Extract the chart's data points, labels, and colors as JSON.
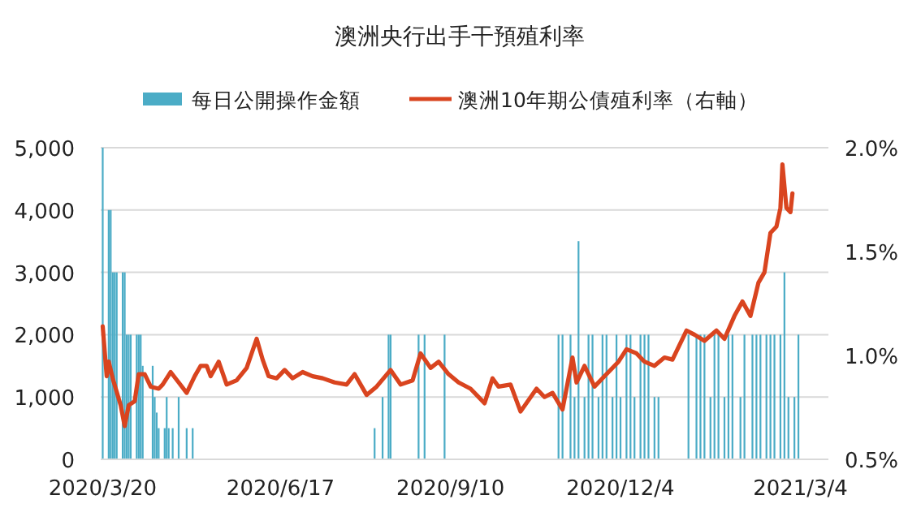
{
  "chart_data": {
    "type": "bar",
    "title": "澳洲央行出手干預殖利率",
    "xlim": [
      "2020-03-19",
      "2021-03-18"
    ],
    "xticks": [
      {
        "value": "2020-03-20",
        "label": "2020/3/20"
      },
      {
        "value": "2020-06-17",
        "label": "2020/6/17"
      },
      {
        "value": "2020-09-10",
        "label": "2020/9/10"
      },
      {
        "value": "2020-12-04",
        "label": "2020/12/4"
      },
      {
        "value": "2021-03-04",
        "label": "2021/3/4"
      }
    ],
    "ylim": [
      0,
      5000
    ],
    "yticks": [
      0,
      {
        "value": 1000,
        "label": "1,000"
      },
      {
        "value": 2000,
        "label": "2,000"
      },
      {
        "value": 3000,
        "label": "3,000"
      },
      {
        "value": 4000,
        "label": "4,000"
      },
      {
        "value": 5000,
        "label": "5,000"
      }
    ],
    "y2lim": [
      0.5,
      2.0
    ],
    "y2ticks": [
      {
        "value": 0.5,
        "label": "0.5%"
      },
      {
        "value": 1.0,
        "label": "1.0%"
      },
      {
        "value": 1.5,
        "label": "1.5%"
      },
      {
        "value": 2.0,
        "label": "2.0%"
      }
    ],
    "grid": "y",
    "legend": "top",
    "series": [
      {
        "name": "每日公開操作金額",
        "color": "#4bacc6",
        "x": [
          "2020-03-20",
          "2020-03-23",
          "2020-03-24",
          "2020-03-25",
          "2020-03-26",
          "2020-03-27",
          "2020-03-30",
          "2020-03-31",
          "2020-04-01",
          "2020-04-02",
          "2020-04-03",
          "2020-04-06",
          "2020-04-07",
          "2020-04-08",
          "2020-04-09",
          "2020-04-14",
          "2020-04-15",
          "2020-04-16",
          "2020-04-17",
          "2020-04-20",
          "2020-04-21",
          "2020-04-22",
          "2020-04-24",
          "2020-04-27",
          "2020-05-01",
          "2020-05-04",
          "2020-08-03",
          "2020-08-07",
          "2020-08-10",
          "2020-08-11",
          "2020-08-25",
          "2020-08-28",
          "2020-09-07",
          "2020-11-03",
          "2020-11-05",
          "2020-11-09",
          "2020-11-11",
          "2020-11-13",
          "2020-11-16",
          "2020-11-18",
          "2020-11-20",
          "2020-11-23",
          "2020-11-25",
          "2020-11-27",
          "2020-11-30",
          "2020-12-02",
          "2020-12-04",
          "2020-12-07",
          "2020-12-09",
          "2020-12-11",
          "2020-12-14",
          "2020-12-16",
          "2020-12-18",
          "2020-12-21",
          "2020-12-23",
          "2021-01-07",
          "2021-01-11",
          "2021-01-13",
          "2021-01-15",
          "2021-01-18",
          "2021-01-20",
          "2021-01-22",
          "2021-01-25",
          "2021-01-27",
          "2021-01-29",
          "2021-02-02",
          "2021-02-04",
          "2021-02-08",
          "2021-02-10",
          "2021-02-12",
          "2021-02-15",
          "2021-02-17",
          "2021-02-19",
          "2021-02-22",
          "2021-02-24",
          "2021-02-26",
          "2021-03-01",
          "2021-03-03"
        ],
        "values": [
          5000,
          4000,
          4000,
          3000,
          3000,
          3000,
          3000,
          3000,
          2000,
          2000,
          2000,
          2000,
          2000,
          2000,
          1500,
          1500,
          1000,
          750,
          500,
          500,
          1000,
          500,
          500,
          1000,
          500,
          500,
          500,
          1000,
          2000,
          2000,
          2000,
          2000,
          2000,
          2000,
          2000,
          2000,
          1000,
          3500,
          1000,
          2000,
          2000,
          1000,
          2000,
          2000,
          1000,
          2000,
          1000,
          2000,
          2000,
          1000,
          2000,
          2000,
          2000,
          1000,
          1000,
          2000,
          2000,
          2000,
          2000,
          1000,
          2000,
          2000,
          1000,
          2000,
          2000,
          1000,
          2000,
          2000,
          2000,
          2000,
          2000,
          2000,
          2000,
          2000,
          3000,
          1000,
          1000,
          2000
        ]
      },
      {
        "name": "澳洲10年期公債殖利率（右軸）",
        "type": "line",
        "axis": "y2",
        "color": "#d9441f",
        "x": [
          "2020-03-20",
          "2020-03-22",
          "2020-03-23",
          "2020-03-25",
          "2020-03-29",
          "2020-03-31",
          "2020-04-02",
          "2020-04-05",
          "2020-04-07",
          "2020-04-10",
          "2020-04-13",
          "2020-04-17",
          "2020-04-19",
          "2020-04-23",
          "2020-04-27",
          "2020-05-01",
          "2020-05-05",
          "2020-05-08",
          "2020-05-11",
          "2020-05-13",
          "2020-05-17",
          "2020-05-21",
          "2020-05-26",
          "2020-05-31",
          "2020-06-05",
          "2020-06-08",
          "2020-06-11",
          "2020-06-15",
          "2020-06-19",
          "2020-06-23",
          "2020-06-28",
          "2020-07-03",
          "2020-07-08",
          "2020-07-14",
          "2020-07-20",
          "2020-07-24",
          "2020-07-30",
          "2020-08-04",
          "2020-08-11",
          "2020-08-16",
          "2020-08-22",
          "2020-08-26",
          "2020-08-31",
          "2020-09-04",
          "2020-09-09",
          "2020-09-14",
          "2020-09-20",
          "2020-09-27",
          "2020-10-01",
          "2020-10-04",
          "2020-10-10",
          "2020-10-15",
          "2020-10-23",
          "2020-10-27",
          "2020-10-31",
          "2020-11-05",
          "2020-11-10",
          "2020-11-12",
          "2020-11-16",
          "2020-11-21",
          "2020-11-27",
          "2020-12-03",
          "2020-12-07",
          "2020-12-12",
          "2020-12-16",
          "2020-12-21",
          "2020-12-26",
          "2020-12-30",
          "2021-01-06",
          "2021-01-10",
          "2021-01-15",
          "2021-01-21",
          "2021-01-25",
          "2021-01-30",
          "2021-02-03",
          "2021-02-07",
          "2021-02-11",
          "2021-02-14",
          "2021-02-17",
          "2021-02-20",
          "2021-02-22",
          "2021-02-23",
          "2021-02-25",
          "2021-02-27",
          "2021-02-28"
        ],
        "values": [
          1.14,
          0.9,
          0.97,
          0.89,
          0.76,
          0.66,
          0.76,
          0.78,
          0.91,
          0.91,
          0.85,
          0.84,
          0.86,
          0.92,
          0.87,
          0.82,
          0.9,
          0.95,
          0.95,
          0.9,
          0.97,
          0.86,
          0.88,
          0.94,
          1.08,
          0.98,
          0.9,
          0.89,
          0.93,
          0.89,
          0.92,
          0.9,
          0.89,
          0.87,
          0.86,
          0.91,
          0.81,
          0.85,
          0.93,
          0.86,
          0.88,
          1.01,
          0.94,
          0.97,
          0.91,
          0.87,
          0.84,
          0.77,
          0.89,
          0.85,
          0.86,
          0.73,
          0.84,
          0.8,
          0.82,
          0.74,
          0.99,
          0.87,
          0.95,
          0.85,
          0.91,
          0.97,
          1.03,
          1.01,
          0.97,
          0.95,
          0.99,
          0.98,
          1.12,
          1.1,
          1.07,
          1.12,
          1.08,
          1.19,
          1.26,
          1.19,
          1.35,
          1.4,
          1.59,
          1.62,
          1.71,
          1.92,
          1.71,
          1.69,
          1.78
        ]
      }
    ]
  }
}
